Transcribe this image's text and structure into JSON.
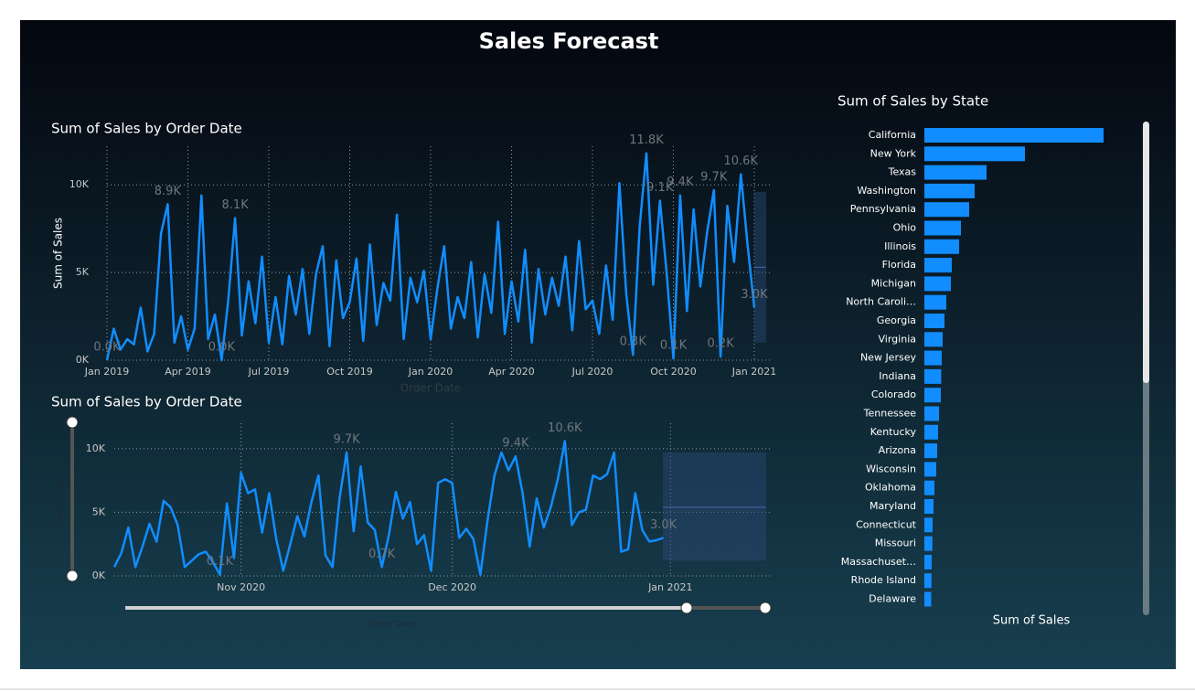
{
  "title": "Sales Forecast",
  "chart_data": [
    {
      "type": "line",
      "title": "Sum of Sales by Order Date",
      "xlabel": "Order Date",
      "ylabel": "Sum of Sales",
      "color": "#118dff",
      "grid": true,
      "categories": [
        "Jan 2019",
        null,
        null,
        null,
        null,
        null,
        null,
        null,
        null,
        null,
        null,
        null,
        "Apr 2019",
        null,
        null,
        null,
        null,
        null,
        null,
        null,
        null,
        null,
        null,
        null,
        "Jul 2019",
        null,
        null,
        null,
        null,
        null,
        null,
        null,
        null,
        null,
        null,
        null,
        "Oct 2019",
        null,
        null,
        null,
        null,
        null,
        null,
        null,
        null,
        null,
        null,
        null,
        "Jan 2020",
        null,
        null,
        null,
        null,
        null,
        null,
        null,
        null,
        null,
        null,
        null,
        "Apr 2020",
        null,
        null,
        null,
        null,
        null,
        null,
        null,
        null,
        null,
        null,
        null,
        "Jul 2020",
        null,
        null,
        null,
        null,
        null,
        null,
        null,
        null,
        null,
        null,
        null,
        "Oct 2020",
        null,
        null,
        null,
        null,
        null,
        null,
        null,
        null,
        null,
        null,
        null,
        "Jan 2021"
      ],
      "values": [
        0,
        1800,
        600,
        1200,
        900,
        3000,
        500,
        1500,
        7200,
        8900,
        1000,
        2500,
        600,
        1800,
        9400,
        1200,
        2600,
        0,
        3500,
        8100,
        1400,
        4500,
        2100,
        5900,
        1000,
        3600,
        900,
        4800,
        2600,
        5200,
        1500,
        4900,
        6500,
        800,
        5700,
        2400,
        3300,
        5800,
        1100,
        6600,
        2000,
        4400,
        3400,
        8300,
        1200,
        4700,
        3300,
        5100,
        1200,
        4100,
        6500,
        1800,
        3600,
        2400,
        5600,
        1300,
        4900,
        2700,
        7900,
        1500,
        4500,
        2200,
        6300,
        1000,
        5200,
        2600,
        4700,
        3100,
        5900,
        1700,
        6800,
        2900,
        3400,
        1500,
        5400,
        2300,
        10100,
        3800,
        300,
        7600,
        11800,
        4300,
        9100,
        5000,
        100,
        9400,
        2800,
        8600,
        4200,
        7300,
        9700,
        200,
        8800,
        5600,
        10600,
        6600,
        3000
      ],
      "value_labels": [
        "0.0K",
        null,
        null,
        null,
        null,
        null,
        null,
        null,
        null,
        "8.9K",
        null,
        null,
        null,
        null,
        null,
        null,
        null,
        "0.0K",
        null,
        "8.1K",
        null,
        null,
        null,
        null,
        null,
        null,
        null,
        null,
        null,
        null,
        null,
        null,
        null,
        null,
        null,
        null,
        null,
        null,
        null,
        null,
        null,
        null,
        null,
        null,
        null,
        null,
        null,
        null,
        null,
        null,
        null,
        null,
        null,
        null,
        null,
        null,
        null,
        null,
        null,
        null,
        null,
        null,
        null,
        null,
        null,
        null,
        null,
        null,
        null,
        null,
        null,
        null,
        null,
        null,
        null,
        null,
        null,
        null,
        "0.3K",
        null,
        "11.8K",
        null,
        "9.1K",
        null,
        "0.1K",
        "9.4K",
        null,
        null,
        null,
        null,
        "9.7K",
        "0.2K",
        null,
        null,
        "10.6K",
        null,
        "3.0K"
      ],
      "forecast": {
        "value": 5300,
        "lower": 1000,
        "upper": 9600
      },
      "ylim": [
        0,
        12200
      ],
      "yticks": [
        {
          "value": 0,
          "label": "0K"
        },
        {
          "value": 5000,
          "label": "5K"
        },
        {
          "value": 10000,
          "label": "10K"
        }
      ]
    },
    {
      "type": "line",
      "title": "Sum of Sales by Order Date",
      "xlabel": "Order Date",
      "ylabel": "Sum of Sales",
      "color": "#118dff",
      "grid": true,
      "categories": [
        null,
        null,
        null,
        null,
        null,
        null,
        null,
        null,
        null,
        null,
        null,
        null,
        null,
        null,
        null,
        null,
        null,
        null,
        "Nov 2020",
        null,
        null,
        null,
        null,
        null,
        null,
        null,
        null,
        null,
        null,
        null,
        null,
        null,
        null,
        null,
        null,
        null,
        null,
        null,
        null,
        null,
        null,
        null,
        null,
        null,
        null,
        null,
        null,
        null,
        "Dec 2020",
        null,
        null,
        null,
        null,
        null,
        null,
        null,
        null,
        null,
        null,
        null,
        null,
        null,
        null,
        null,
        null,
        null,
        null,
        null,
        null,
        null,
        null,
        null,
        null,
        null,
        null,
        null,
        null,
        null,
        null,
        "Jan 2021"
      ],
      "values": [
        700,
        1800,
        3800,
        700,
        2300,
        4100,
        2700,
        5900,
        5400,
        4000,
        700,
        1200,
        1700,
        1900,
        1100,
        100,
        5700,
        1400,
        8100,
        6500,
        6800,
        3400,
        6500,
        2900,
        400,
        2500,
        4700,
        3100,
        5800,
        7900,
        1600,
        700,
        6100,
        9700,
        3500,
        8600,
        4200,
        3600,
        700,
        3200,
        6600,
        4500,
        5800,
        2500,
        3200,
        400,
        7300,
        7600,
        7300,
        3000,
        3700,
        2900,
        100,
        4300,
        7900,
        9700,
        8300,
        9400,
        6500,
        2300,
        6100,
        3800,
        5400,
        7600,
        10600,
        4000,
        5000,
        5200,
        7900,
        7600,
        8000,
        9700,
        1900,
        2100,
        6500,
        3600,
        2700,
        2800,
        3000,
        null
      ],
      "value_labels": [
        null,
        null,
        null,
        null,
        null,
        null,
        null,
        null,
        null,
        null,
        null,
        null,
        null,
        null,
        null,
        "0.1K",
        null,
        null,
        null,
        null,
        null,
        null,
        null,
        null,
        null,
        null,
        null,
        null,
        null,
        null,
        null,
        null,
        null,
        "9.7K",
        null,
        null,
        null,
        null,
        "0.7K",
        null,
        null,
        null,
        null,
        null,
        null,
        null,
        null,
        null,
        null,
        null,
        null,
        null,
        null,
        null,
        null,
        null,
        null,
        "9.4K",
        null,
        null,
        null,
        null,
        null,
        null,
        "10.6K",
        null,
        null,
        null,
        null,
        null,
        null,
        null,
        null,
        null,
        null,
        null,
        null,
        null,
        "3.0K",
        null
      ],
      "forecast": {
        "value": 5400,
        "lower": 1200,
        "upper": 9700
      },
      "ylim": [
        0,
        12000
      ],
      "yticks": [
        {
          "value": 0,
          "label": "0K"
        },
        {
          "value": 5000,
          "label": "5K"
        },
        {
          "value": 10000,
          "label": "10K"
        }
      ]
    },
    {
      "type": "bar",
      "title": "Sum of Sales by State",
      "xlabel": "Sum of Sales",
      "color": "#118dff",
      "categories": [
        "California",
        "New York",
        "Texas",
        "Washington",
        "Pennsylvania",
        "Ohio",
        "Illinois",
        "Florida",
        "Michigan",
        "North Caroli…",
        "Georgia",
        "Virginia",
        "New Jersey",
        "Indiana",
        "Colorado",
        "Tennessee",
        "Kentucky",
        "Arizona",
        "Wisconsin",
        "Oklahoma",
        "Maryland",
        "Connecticut",
        "Missouri",
        "Massachuset…",
        "Rhode Island",
        "Delaware"
      ],
      "values": [
        457700,
        256900,
        158800,
        128400,
        114400,
        93400,
        88700,
        70000,
        67700,
        56000,
        51400,
        46700,
        44400,
        43000,
        42000,
        37400,
        35000,
        32700,
        30400,
        25700,
        23400,
        21000,
        20500,
        18700,
        18200,
        17500
      ],
      "xlim": [
        0,
        460000
      ]
    }
  ]
}
